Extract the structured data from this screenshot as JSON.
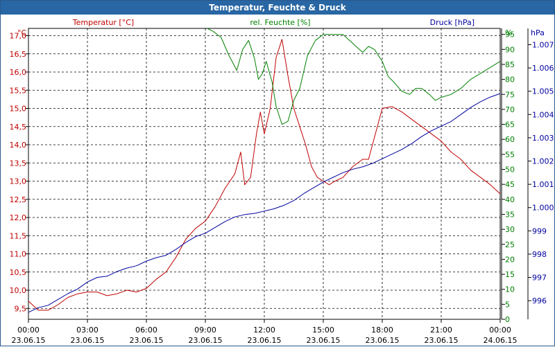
{
  "window": {
    "title": "Temperatur, Feuchte & Druck"
  },
  "chart_data": {
    "type": "line",
    "title": "Temperatur, Feuchte & Druck",
    "grid": true,
    "x_ticks": [
      {
        "time": "00:00",
        "date": "23.06.15"
      },
      {
        "time": "03:00",
        "date": "23.06.15"
      },
      {
        "time": "06:00",
        "date": "23.06.15"
      },
      {
        "time": "09:00",
        "date": "23.06.15"
      },
      {
        "time": "12:00",
        "date": "23.06.15"
      },
      {
        "time": "15:00",
        "date": "23.06.15"
      },
      {
        "time": "18:00",
        "date": "23.06.15"
      },
      {
        "time": "21:00",
        "date": "23.06.15"
      },
      {
        "time": "00:00",
        "date": "24.06.15"
      }
    ],
    "x_unit": "hours since 23.06.15 00:00",
    "axes": {
      "temperature": {
        "label": "Temperatur [°C]",
        "unit": "°C",
        "ylim": [
          9.2,
          17.2
        ],
        "ticks": [
          "9,5",
          "10,0",
          "10,5",
          "11,0",
          "11,5",
          "12,0",
          "12,5",
          "13,0",
          "13,5",
          "14,0",
          "14,5",
          "15,0",
          "15,5",
          "16,0",
          "16,5",
          "17,0"
        ],
        "color": "#c00000"
      },
      "humidity": {
        "label": "rel. Feuchte [%]",
        "unit": "%",
        "ylim": [
          0,
          97
        ],
        "ticks": [
          "0",
          "5",
          "10",
          "15",
          "20",
          "25",
          "30",
          "35",
          "40",
          "45",
          "50",
          "55",
          "60",
          "65",
          "70",
          "75",
          "80",
          "85",
          "90",
          "95"
        ],
        "color": "#008000"
      },
      "pressure": {
        "label": "Druck [hPa]",
        "unit": "hPa",
        "ylim": [
          995.2,
          1007.7
        ],
        "ticks": [
          "996",
          "997",
          "998",
          "999",
          "1.000",
          "1.001",
          "1.002",
          "1.003",
          "1.004",
          "1.005",
          "1.006",
          "1.007"
        ],
        "color": "#0000a0"
      }
    },
    "series": [
      {
        "name": "Temperatur [°C]",
        "axis": "temperature",
        "points": [
          [
            0,
            9.7
          ],
          [
            0.5,
            9.45
          ],
          [
            1,
            9.45
          ],
          [
            1.5,
            9.6
          ],
          [
            2,
            9.8
          ],
          [
            2.5,
            9.9
          ],
          [
            3,
            9.95
          ],
          [
            3.5,
            9.95
          ],
          [
            4,
            9.85
          ],
          [
            4.5,
            9.9
          ],
          [
            5,
            10.0
          ],
          [
            5.5,
            9.95
          ],
          [
            6,
            10.05
          ],
          [
            6.5,
            10.3
          ],
          [
            7,
            10.5
          ],
          [
            7.5,
            10.9
          ],
          [
            8,
            11.4
          ],
          [
            8.5,
            11.7
          ],
          [
            9,
            11.9
          ],
          [
            9.5,
            12.3
          ],
          [
            10,
            12.8
          ],
          [
            10.5,
            13.2
          ],
          [
            10.8,
            13.8
          ],
          [
            11,
            12.9
          ],
          [
            11.3,
            13.1
          ],
          [
            11.6,
            14.3
          ],
          [
            11.8,
            14.9
          ],
          [
            12,
            14.3
          ],
          [
            12.3,
            15.0
          ],
          [
            12.6,
            16.4
          ],
          [
            12.9,
            16.9
          ],
          [
            13.2,
            15.9
          ],
          [
            13.5,
            15.0
          ],
          [
            13.8,
            14.5
          ],
          [
            14.1,
            14.0
          ],
          [
            14.4,
            13.4
          ],
          [
            14.7,
            13.1
          ],
          [
            15,
            13.0
          ],
          [
            15.3,
            12.9
          ],
          [
            15.6,
            13.0
          ],
          [
            16,
            13.1
          ],
          [
            16.5,
            13.4
          ],
          [
            17,
            13.6
          ],
          [
            17.3,
            13.6
          ],
          [
            17.6,
            14.2
          ],
          [
            18,
            15.0
          ],
          [
            18.5,
            15.05
          ],
          [
            19,
            14.9
          ],
          [
            19.5,
            14.7
          ],
          [
            20,
            14.5
          ],
          [
            20.5,
            14.3
          ],
          [
            21,
            14.1
          ],
          [
            21.5,
            13.8
          ],
          [
            22,
            13.6
          ],
          [
            22.5,
            13.3
          ],
          [
            23,
            13.1
          ],
          [
            23.5,
            12.9
          ],
          [
            24,
            12.65
          ]
        ]
      },
      {
        "name": "rel. Feuchte [%]",
        "axis": "humidity",
        "points": [
          [
            9.1,
            97
          ],
          [
            9.4,
            96
          ],
          [
            9.8,
            94
          ],
          [
            10.2,
            88
          ],
          [
            10.6,
            83
          ],
          [
            10.9,
            90
          ],
          [
            11.2,
            93
          ],
          [
            11.5,
            87
          ],
          [
            11.7,
            80
          ],
          [
            11.9,
            82
          ],
          [
            12.1,
            86
          ],
          [
            12.4,
            79
          ],
          [
            12.6,
            71
          ],
          [
            12.9,
            65
          ],
          [
            13.2,
            66
          ],
          [
            13.5,
            73
          ],
          [
            13.8,
            77
          ],
          [
            14.2,
            88
          ],
          [
            14.6,
            93
          ],
          [
            15,
            95
          ],
          [
            15.5,
            95
          ],
          [
            16,
            95
          ],
          [
            16.5,
            92
          ],
          [
            17,
            89
          ],
          [
            17.3,
            91
          ],
          [
            17.6,
            90
          ],
          [
            18,
            86
          ],
          [
            18.3,
            81
          ],
          [
            18.6,
            79
          ],
          [
            19,
            76
          ],
          [
            19.4,
            75
          ],
          [
            19.7,
            77
          ],
          [
            20,
            77
          ],
          [
            20.4,
            75
          ],
          [
            20.7,
            73
          ],
          [
            21,
            74
          ],
          [
            21.5,
            75
          ],
          [
            22,
            77
          ],
          [
            22.5,
            80
          ],
          [
            23,
            82
          ],
          [
            23.5,
            84
          ],
          [
            24,
            86
          ]
        ]
      },
      {
        "name": "Druck [hPa]",
        "axis": "pressure",
        "points": [
          [
            0,
            995.5
          ],
          [
            0.5,
            995.7
          ],
          [
            1,
            995.8
          ],
          [
            1.5,
            996.05
          ],
          [
            2,
            996.3
          ],
          [
            2.5,
            996.5
          ],
          [
            3,
            996.8
          ],
          [
            3.5,
            997.0
          ],
          [
            4,
            997.05
          ],
          [
            4.5,
            997.25
          ],
          [
            5,
            997.4
          ],
          [
            5.5,
            997.5
          ],
          [
            6,
            997.7
          ],
          [
            6.5,
            997.85
          ],
          [
            7,
            997.95
          ],
          [
            7.5,
            998.2
          ],
          [
            8,
            998.5
          ],
          [
            8.5,
            998.75
          ],
          [
            9,
            998.9
          ],
          [
            9.5,
            999.15
          ],
          [
            10,
            999.4
          ],
          [
            10.5,
            999.6
          ],
          [
            11,
            999.7
          ],
          [
            11.5,
            999.75
          ],
          [
            12,
            999.85
          ],
          [
            12.5,
            999.95
          ],
          [
            13,
            1000.1
          ],
          [
            13.5,
            1000.3
          ],
          [
            14,
            1000.6
          ],
          [
            14.5,
            1000.85
          ],
          [
            15,
            1001.1
          ],
          [
            15.5,
            1001.3
          ],
          [
            16,
            1001.5
          ],
          [
            16.5,
            1001.65
          ],
          [
            17,
            1001.75
          ],
          [
            17.5,
            1001.9
          ],
          [
            18,
            1002.1
          ],
          [
            18.5,
            1002.3
          ],
          [
            19,
            1002.5
          ],
          [
            19.5,
            1002.75
          ],
          [
            20,
            1003.05
          ],
          [
            20.5,
            1003.3
          ],
          [
            21,
            1003.5
          ],
          [
            21.5,
            1003.7
          ],
          [
            22,
            1004.0
          ],
          [
            22.5,
            1004.3
          ],
          [
            23,
            1004.55
          ],
          [
            23.5,
            1004.75
          ],
          [
            24,
            1004.9
          ]
        ]
      }
    ]
  }
}
